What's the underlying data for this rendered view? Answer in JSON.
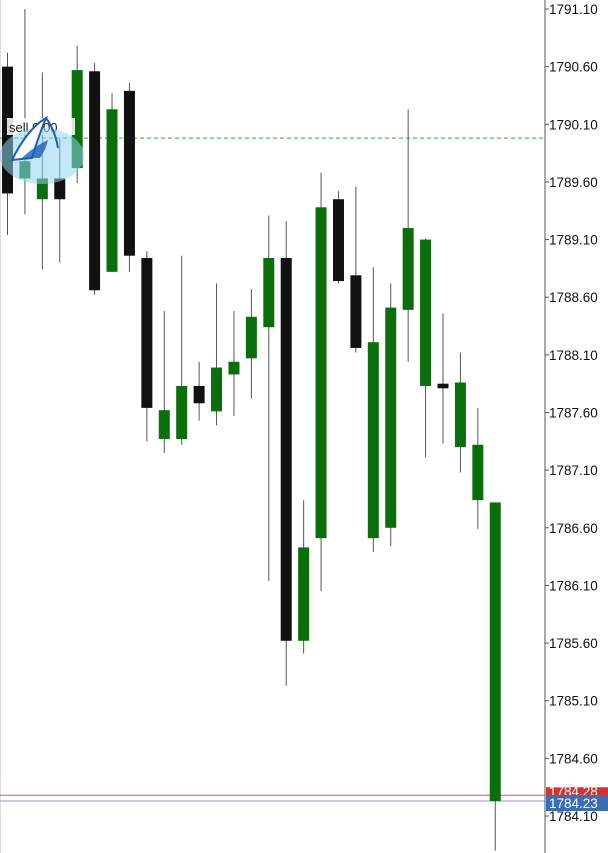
{
  "chart_data": {
    "type": "candlestick",
    "title": "",
    "xlabel": "",
    "ylabel": "",
    "ylim": [
      1784.0,
      1791.1
    ],
    "y_ticks": [
      "1791.10",
      "1790.60",
      "1790.10",
      "1789.60",
      "1789.10",
      "1788.60",
      "1788.10",
      "1787.60",
      "1787.10",
      "1786.60",
      "1786.10",
      "1785.60",
      "1785.10",
      "1784.60",
      "1784.10"
    ],
    "bull_color": "#0a6e0a",
    "bear_color": "#111111",
    "candles": [
      {
        "dir": "bear",
        "open": 1790.6,
        "close": 1789.5,
        "high": 1790.72,
        "low": 1789.14
      },
      {
        "dir": "bull",
        "open": 1789.63,
        "close": 1789.78,
        "high": 1791.1,
        "low": 1789.32
      },
      {
        "dir": "bull",
        "open": 1789.45,
        "close": 1789.63,
        "high": 1790.55,
        "low": 1788.84
      },
      {
        "dir": "bear",
        "open": 1789.63,
        "close": 1789.45,
        "high": 1789.98,
        "low": 1788.9
      },
      {
        "dir": "bull",
        "open": 1789.72,
        "close": 1790.57,
        "high": 1790.78,
        "low": 1789.59
      },
      {
        "dir": "bear",
        "open": 1790.56,
        "close": 1788.66,
        "high": 1790.63,
        "low": 1788.62
      },
      {
        "dir": "bull",
        "open": 1790.23,
        "close": 1788.82,
        "high": 1790.37,
        "low": 1788.82
      },
      {
        "dir": "bear",
        "open": 1790.39,
        "close": 1788.96,
        "high": 1790.46,
        "low": 1788.82
      },
      {
        "dir": "bear",
        "open": 1788.94,
        "close": 1787.64,
        "high": 1789.0,
        "low": 1787.35
      },
      {
        "dir": "bull",
        "open": 1787.37,
        "close": 1787.62,
        "high": 1788.48,
        "low": 1787.25
      },
      {
        "dir": "bull",
        "open": 1787.37,
        "close": 1787.83,
        "high": 1788.96,
        "low": 1787.32
      },
      {
        "dir": "bear",
        "open": 1787.68,
        "close": 1787.83,
        "high": 1788.04,
        "low": 1787.53
      },
      {
        "dir": "bull",
        "open": 1787.61,
        "close": 1787.99,
        "high": 1788.72,
        "low": 1787.49
      },
      {
        "dir": "bull",
        "open": 1787.93,
        "close": 1788.04,
        "high": 1788.48,
        "low": 1787.57
      },
      {
        "dir": "bull",
        "open": 1788.07,
        "close": 1788.43,
        "high": 1788.67,
        "low": 1787.72
      },
      {
        "dir": "bull",
        "open": 1788.34,
        "close": 1788.94,
        "high": 1789.31,
        "low": 1786.14
      },
      {
        "dir": "bear",
        "open": 1788.94,
        "close": 1785.62,
        "high": 1789.26,
        "low": 1785.23
      },
      {
        "dir": "bull",
        "open": 1786.43,
        "close": 1785.62,
        "high": 1786.84,
        "low": 1785.51
      },
      {
        "dir": "bull",
        "open": 1789.38,
        "close": 1786.51,
        "high": 1789.68,
        "low": 1786.05
      },
      {
        "dir": "bear",
        "open": 1789.45,
        "close": 1788.74,
        "high": 1789.52,
        "low": 1788.72
      },
      {
        "dir": "bear",
        "open": 1788.79,
        "close": 1788.16,
        "high": 1789.56,
        "low": 1788.12
      },
      {
        "dir": "bull",
        "open": 1788.21,
        "close": 1786.51,
        "high": 1788.86,
        "low": 1786.39
      },
      {
        "dir": "bull",
        "open": 1788.51,
        "close": 1786.6,
        "high": 1788.72,
        "low": 1786.44
      },
      {
        "dir": "bull",
        "open": 1789.2,
        "close": 1788.49,
        "high": 1790.23,
        "low": 1788.04
      },
      {
        "dir": "bull",
        "open": 1789.1,
        "close": 1787.83,
        "high": 1789.11,
        "low": 1787.21
      },
      {
        "dir": "bear",
        "open": 1787.85,
        "close": 1787.81,
        "high": 1788.46,
        "low": 1787.33
      },
      {
        "dir": "bull",
        "open": 1787.86,
        "close": 1787.3,
        "high": 1788.12,
        "low": 1787.08
      },
      {
        "dir": "bull",
        "open": 1787.32,
        "close": 1786.84,
        "high": 1787.64,
        "low": 1786.59
      },
      {
        "dir": "bull",
        "open": 1786.82,
        "close": 1784.23,
        "high": 1786.82,
        "low": 1783.8
      }
    ],
    "price_lines": [
      {
        "name": "order",
        "price": 1789.98,
        "color": "#3aa53a",
        "style": "dashed"
      },
      {
        "name": "bid",
        "price": 1784.23,
        "color": "#8a9ad8",
        "style": "solid"
      },
      {
        "name": "ask",
        "price": 1784.28,
        "color": "#e05050",
        "style": "solid"
      }
    ],
    "order_label": "sell 0.00",
    "bid_badge": {
      "text": "1784.23",
      "color": "#3b6db5"
    },
    "ask_badge": {
      "text": "1784.28",
      "color": "#d93030"
    }
  }
}
